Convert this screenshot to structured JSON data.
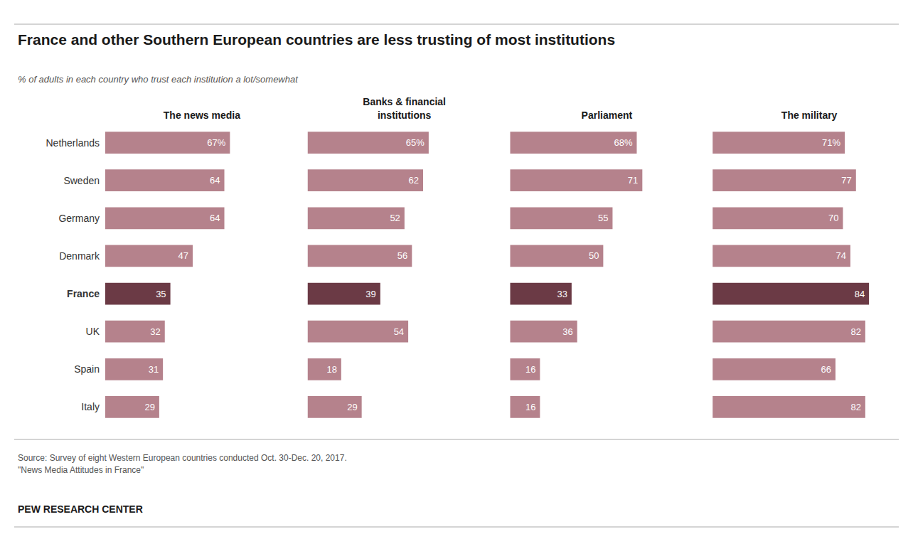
{
  "chart_data": {
    "type": "bar",
    "orientation": "horizontal",
    "title": "France and other Southern European countries are less trusting of most institutions",
    "subtitle": "% of adults in each country who trust each institution a lot/somewhat",
    "annotations": [
      "Source: Survey of eight Western European countries conducted Oct. 30-Dec. 20, 2017.\n\"News Media Attitudes in France\"",
      "PEW RESEARCH CENTER"
    ],
    "categories": [
      "Netherlands",
      "Sweden",
      "Germany",
      "Denmark",
      "France",
      "UK",
      "Spain",
      "Italy"
    ],
    "xlim": [
      0,
      100
    ],
    "tick_labels": "y",
    "grid": false,
    "data_labels": true,
    "series": [
      {
        "name": "The news media",
        "color": "#b5828c",
        "colors": [
          "#b5828c",
          "#b5828c",
          "#b5828c",
          "#b5828c",
          "#6b3a45",
          "#b5828c",
          "#b5828c",
          "#b5828c"
        ],
        "values": [
          67,
          64,
          64,
          47,
          35,
          32,
          31,
          29
        ],
        "value_labels": [
          "67%",
          "64",
          "64",
          "47",
          "35",
          "32",
          "31",
          "29"
        ]
      },
      {
        "name": "Banks & financial\ninstitutions",
        "color": "#b5828c",
        "colors": [
          "#b5828c",
          "#b5828c",
          "#b5828c",
          "#b5828c",
          "#6b3a45",
          "#b5828c",
          "#b5828c",
          "#b5828c"
        ],
        "values": [
          65,
          62,
          52,
          56,
          39,
          54,
          18,
          29
        ],
        "value_labels": [
          "65%",
          "62",
          "52",
          "56",
          "39",
          "54",
          "18",
          "29"
        ]
      },
      {
        "name": "Parliament",
        "color": "#b5828c",
        "colors": [
          "#b5828c",
          "#b5828c",
          "#b5828c",
          "#b5828c",
          "#6b3a45",
          "#b5828c",
          "#b5828c",
          "#b5828c"
        ],
        "values": [
          68,
          71,
          55,
          50,
          33,
          36,
          16,
          16
        ],
        "value_labels": [
          "68%",
          "71",
          "55",
          "50",
          "33",
          "36",
          "16",
          "16"
        ]
      },
      {
        "name": "The military",
        "color": "#b5828c",
        "colors": [
          "#b5828c",
          "#b5828c",
          "#b5828c",
          "#b5828c",
          "#6b3a45",
          "#b5828c",
          "#b5828c",
          "#b5828c"
        ],
        "values": [
          71,
          77,
          70,
          74,
          84,
          82,
          66,
          82
        ],
        "value_labels": [
          "71%",
          "77",
          "70",
          "74",
          "84",
          "82",
          "66",
          "82"
        ]
      }
    ]
  }
}
